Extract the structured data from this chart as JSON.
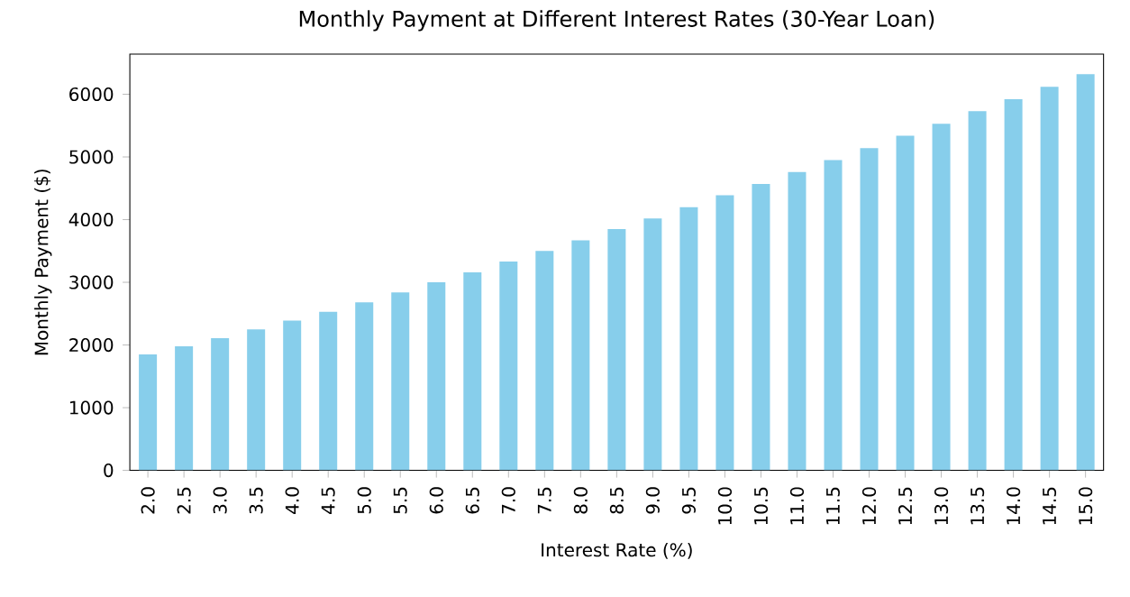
{
  "chart_data": {
    "type": "bar",
    "title": "Monthly Payment at Different Interest Rates (30-Year Loan)",
    "xlabel": "Interest Rate (%)",
    "ylabel": "Monthly Payment ($)",
    "categories": [
      "2.0",
      "2.5",
      "3.0",
      "3.5",
      "4.0",
      "4.5",
      "5.0",
      "5.5",
      "6.0",
      "6.5",
      "7.0",
      "7.5",
      "8.0",
      "8.5",
      "9.0",
      "9.5",
      "10.0",
      "10.5",
      "11.0",
      "11.5",
      "12.0",
      "12.5",
      "13.0",
      "13.5",
      "14.0",
      "14.5",
      "15.0"
    ],
    "values": [
      1850,
      1980,
      2110,
      2250,
      2390,
      2530,
      2680,
      2840,
      3000,
      3160,
      3330,
      3500,
      3670,
      3850,
      4020,
      4200,
      4390,
      4570,
      4760,
      4950,
      5140,
      5340,
      5530,
      5730,
      5920,
      6120,
      6320
    ],
    "color": "#87ceeb",
    "ylim": [
      0,
      6640
    ],
    "yticks": [
      0,
      1000,
      2000,
      3000,
      4000,
      5000,
      6000
    ]
  }
}
